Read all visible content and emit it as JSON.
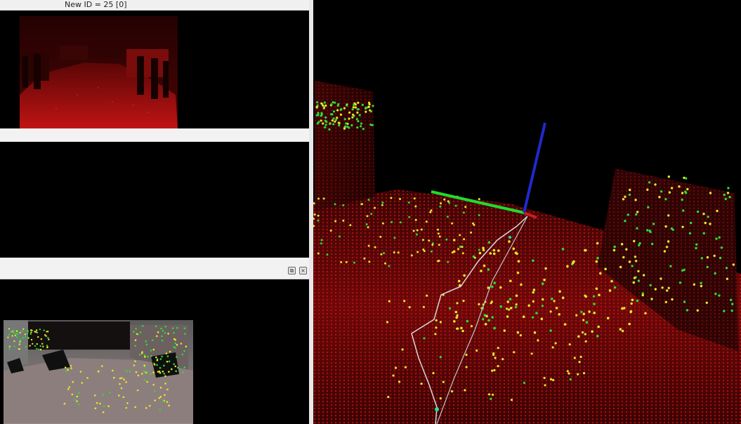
{
  "window": {
    "info_text": "New ID = 25 [0]"
  },
  "panels": {
    "top": "rgb-image",
    "middle": "empty-view",
    "bottom": "depth-feature-overlay",
    "bottom_toolbar": {
      "float_icon": "float-window-icon",
      "close_icon": "close-window-icon",
      "float_glyph": "⧉",
      "close_glyph": "×"
    }
  },
  "colors": {
    "pointcloud": "#cc1a1a",
    "feature_yellow": "#e6e62a",
    "feature_green": "#2adb38",
    "axis_x": "#c81e1e",
    "axis_y": "#1fdc2e",
    "axis_z": "#1f2acb",
    "trajectory": "#d8d8d8"
  }
}
